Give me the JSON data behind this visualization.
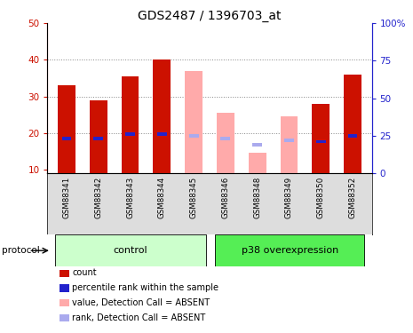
{
  "title": "GDS2487 / 1396703_at",
  "samples": [
    "GSM88341",
    "GSM88342",
    "GSM88343",
    "GSM88344",
    "GSM88345",
    "GSM88346",
    "GSM88348",
    "GSM88349",
    "GSM88350",
    "GSM88352"
  ],
  "red_bars": [
    33.0,
    29.0,
    35.5,
    40.0,
    0,
    0,
    0,
    0,
    28.0,
    36.0
  ],
  "blue_markers": [
    23.0,
    23.0,
    26.0,
    26.0,
    null,
    null,
    null,
    null,
    21.0,
    25.0
  ],
  "pink_bars": [
    0,
    0,
    0,
    0,
    37.0,
    25.5,
    14.5,
    24.5,
    0,
    0
  ],
  "lightblue_markers": [
    null,
    null,
    null,
    null,
    25.0,
    23.0,
    19.0,
    22.0,
    null,
    null
  ],
  "ylim_left": [
    9,
    50
  ],
  "ylim_right": [
    0,
    100
  ],
  "yticks_left": [
    10,
    20,
    30,
    40,
    50
  ],
  "yticks_right": [
    0,
    25,
    50,
    75,
    100
  ],
  "ytick_labels_left": [
    "10",
    "20",
    "30",
    "40",
    "50"
  ],
  "ytick_labels_right": [
    "0",
    "25",
    "50",
    "75",
    "100%"
  ],
  "control_label": "control",
  "p38_label": "p38 overexpression",
  "protocol_label": "protocol",
  "red_color": "#cc1100",
  "blue_color": "#2222cc",
  "pink_color": "#ffaaaa",
  "lightblue_color": "#aaaaee",
  "control_bg": "#ccffcc",
  "p38_bg": "#55ee55",
  "sample_bg": "#dddddd",
  "bar_width": 0.55,
  "grid_color": "#888888",
  "title_fontsize": 10,
  "tick_fontsize": 7.5,
  "legend_fontsize": 7
}
